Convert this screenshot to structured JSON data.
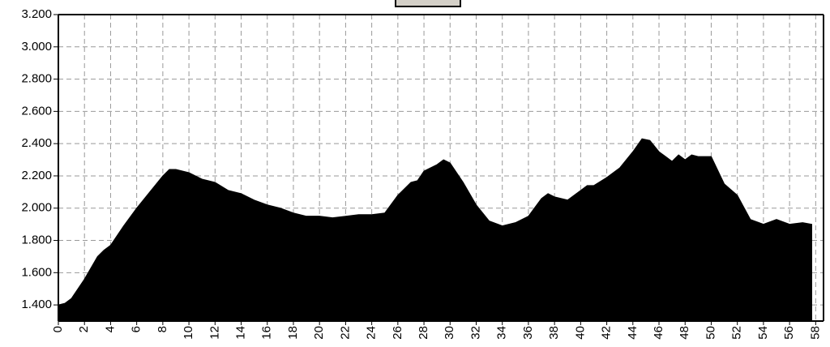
{
  "chart_data": {
    "type": "area",
    "color": "#000000",
    "grid": true,
    "x": [
      0,
      0.5,
      1,
      2,
      3,
      3.5,
      4,
      5,
      6,
      7,
      8,
      8.5,
      9,
      10,
      11,
      12,
      13,
      14,
      15,
      16,
      17,
      18,
      19,
      20,
      21,
      22,
      23,
      24,
      25,
      26,
      27,
      27.5,
      28,
      29,
      29.5,
      30,
      31,
      32,
      33,
      34,
      35,
      36,
      37,
      37.5,
      38,
      39,
      40,
      40.5,
      41,
      42,
      43,
      44,
      44.7,
      45.3,
      46,
      46.5,
      47,
      47.5,
      48,
      48.5,
      49,
      50,
      51,
      52,
      53,
      54,
      55,
      56,
      57,
      57.7
    ],
    "values": [
      1400,
      1410,
      1440,
      1560,
      1700,
      1740,
      1770,
      1890,
      2000,
      2100,
      2200,
      2240,
      2240,
      2220,
      2180,
      2160,
      2110,
      2090,
      2050,
      2020,
      2000,
      1970,
      1950,
      1950,
      1940,
      1950,
      1960,
      1960,
      1970,
      2080,
      2160,
      2170,
      2230,
      2270,
      2300,
      2280,
      2160,
      2020,
      1920,
      1890,
      1910,
      1950,
      2060,
      2090,
      2070,
      2050,
      2110,
      2140,
      2140,
      2190,
      2250,
      2350,
      2430,
      2420,
      2350,
      2320,
      2290,
      2330,
      2300,
      2330,
      2320,
      2320,
      2150,
      2080,
      1930,
      1900,
      1930,
      1900,
      1910,
      1900
    ],
    "xlim": [
      0,
      58.6
    ],
    "xticks": [
      0,
      2,
      4,
      6,
      8,
      10,
      12,
      14,
      16,
      18,
      20,
      22,
      24,
      26,
      28,
      30,
      32,
      34,
      36,
      38,
      40,
      42,
      44,
      46,
      48,
      50,
      52,
      54,
      56,
      58
    ],
    "ylim": [
      1300,
      3200
    ],
    "yticks": [
      {
        "value": 1400,
        "label": "1.400"
      },
      {
        "value": 1600,
        "label": "1.600"
      },
      {
        "value": 1800,
        "label": "1.800"
      },
      {
        "value": 2000,
        "label": "2.000"
      },
      {
        "value": 2200,
        "label": "2.200"
      },
      {
        "value": 2400,
        "label": "2.400"
      },
      {
        "value": 2600,
        "label": "2.600"
      },
      {
        "value": 2800,
        "label": "2.800"
      },
      {
        "value": 3000,
        "label": "3.000"
      },
      {
        "value": 3200,
        "label": "3.200"
      }
    ]
  }
}
